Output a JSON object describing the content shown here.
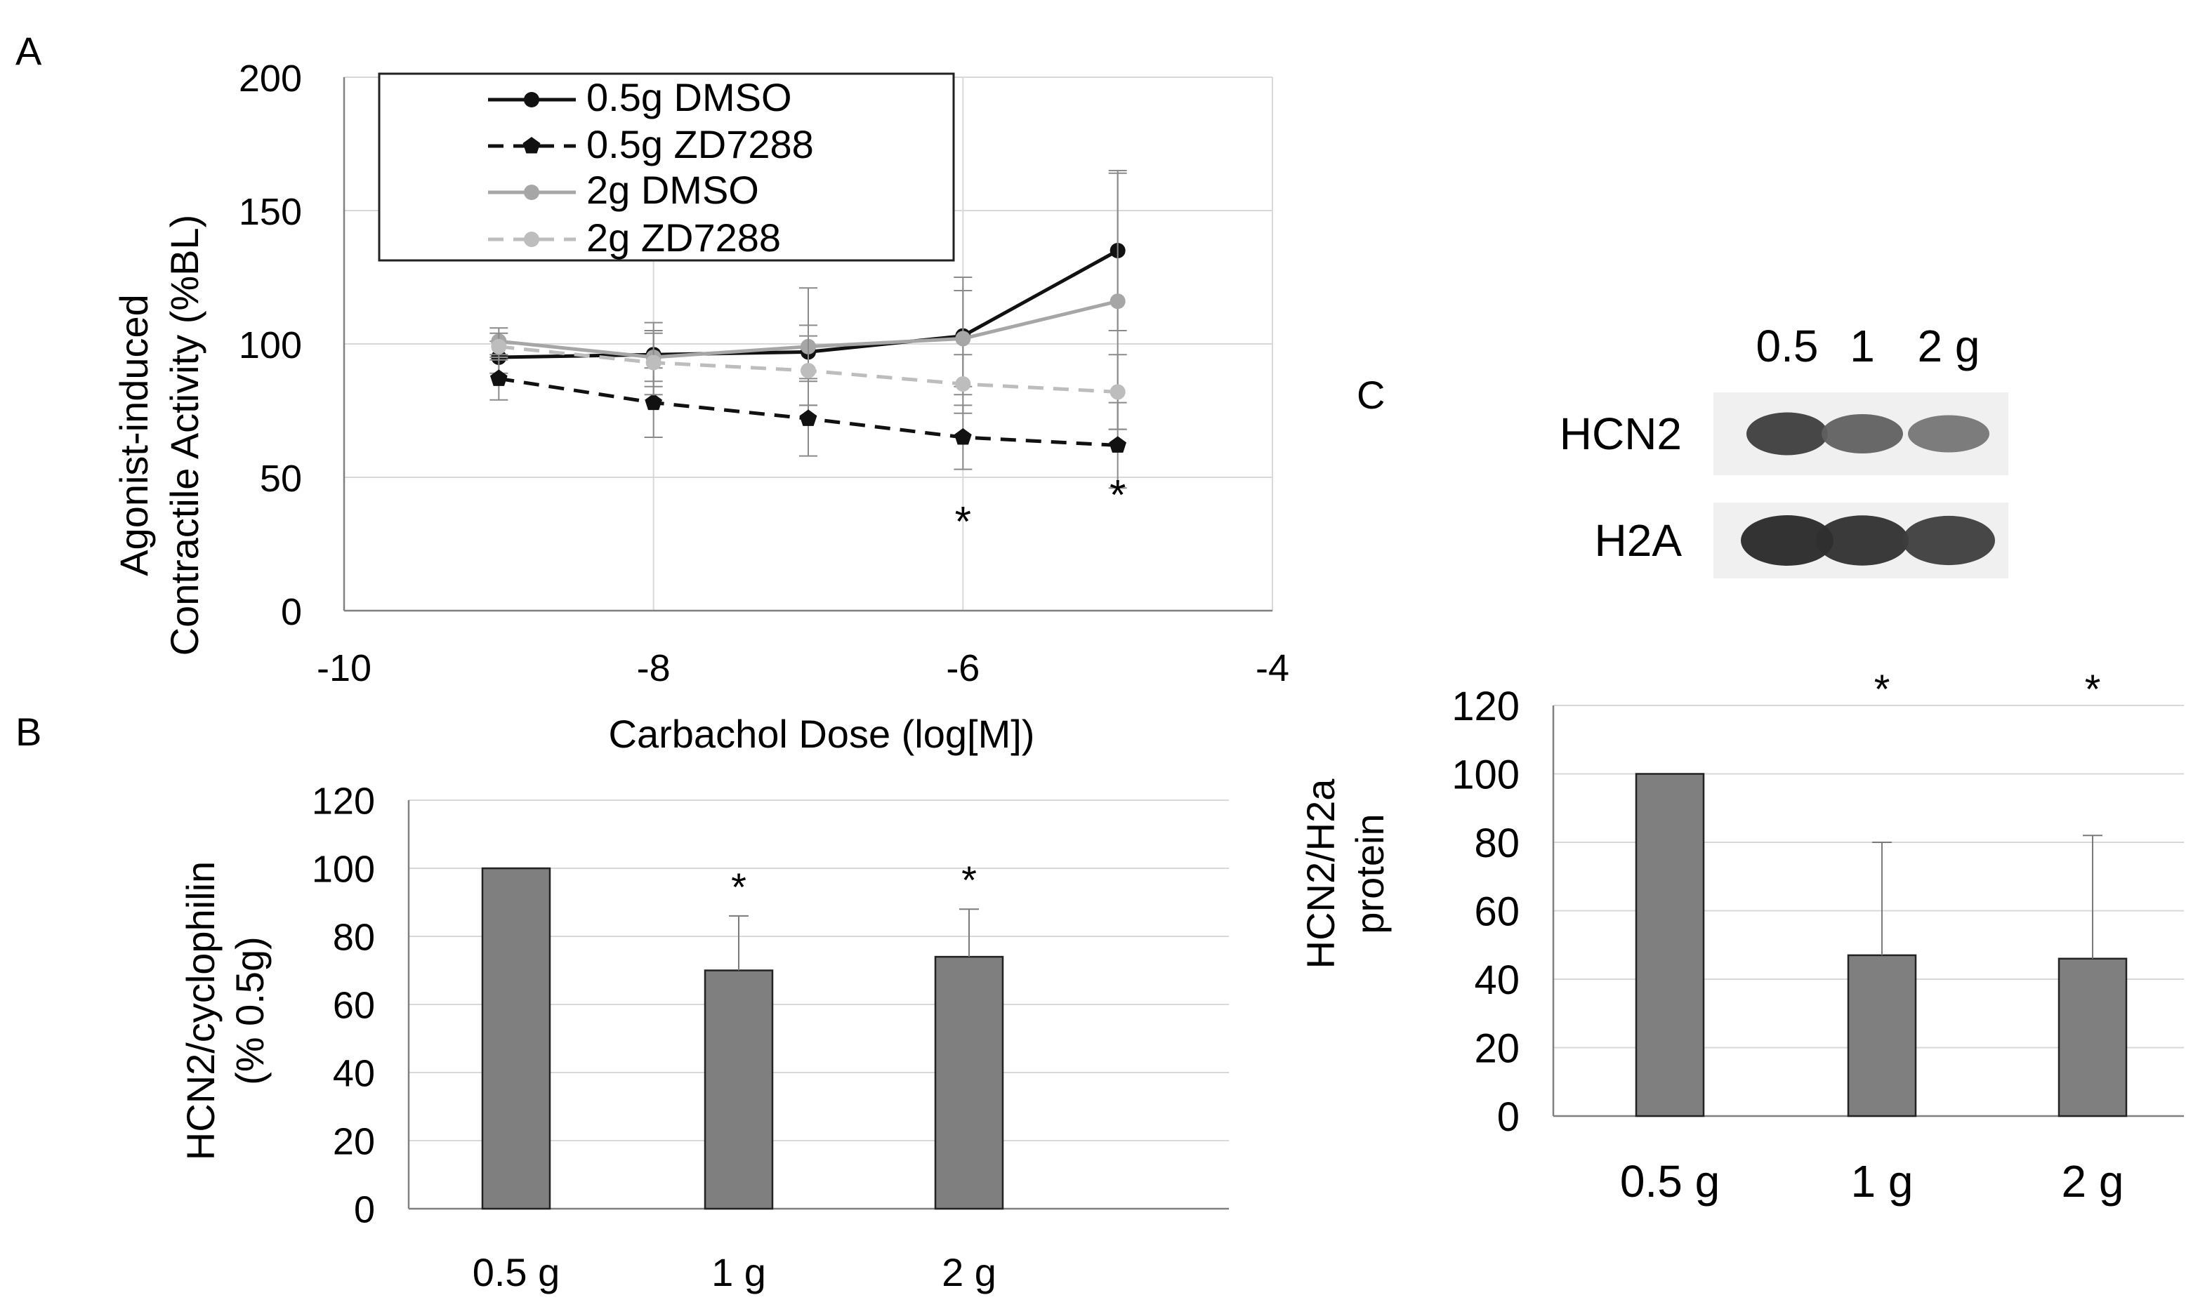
{
  "panels": {
    "a": "A",
    "b": "B",
    "c": "C"
  },
  "colors": {
    "black": "#111111",
    "gray_line": "#a6a6a6",
    "light_gray_line": "#bdbdbd",
    "bar_fill": "#7f7f7f",
    "grid": "#d9d9d9",
    "axis": "#808080"
  },
  "chart_data": [
    {
      "id": "A",
      "type": "line",
      "title": "",
      "xlabel": "Carbachol Dose (log[M])",
      "ylabel_lines": [
        "Agonist-induced",
        "Contractile Activity (%BL)"
      ],
      "xlim": [
        -10,
        -4
      ],
      "ylim": [
        0,
        200
      ],
      "xticks": [
        -10,
        -8,
        -6,
        -4
      ],
      "xtick_labels": [
        "-10",
        "-8",
        "-6",
        "-4"
      ],
      "yticks": [
        0,
        50,
        100,
        150,
        200
      ],
      "ytick_labels": [
        "0",
        "50",
        "100",
        "150",
        "200"
      ],
      "grid": true,
      "legend_position": "top-left",
      "x": [
        -9,
        -8,
        -7,
        -6,
        -5
      ],
      "series": [
        {
          "name": "0.5g DMSO",
          "style": "solid",
          "color": "#111111",
          "marker": "circle",
          "values": [
            95,
            96,
            97,
            103,
            135
          ],
          "errors": [
            6,
            12,
            10,
            22,
            30
          ]
        },
        {
          "name": "0.5g ZD7288",
          "style": "dashed",
          "color": "#111111",
          "marker": "pentagon",
          "values": [
            87,
            78,
            72,
            65,
            62
          ],
          "errors": [
            8,
            13,
            14,
            12,
            16
          ]
        },
        {
          "name": "2g DMSO",
          "style": "solid",
          "color": "#a6a6a6",
          "marker": "circle",
          "values": [
            101,
            95,
            99,
            102,
            116
          ],
          "errors": [
            5,
            9,
            22,
            18,
            48
          ]
        },
        {
          "name": "2g ZD7288",
          "style": "dashed",
          "color": "#bdbdbd",
          "marker": "circle",
          "values": [
            99,
            93,
            90,
            85,
            82
          ],
          "errors": [
            5,
            12,
            13,
            11,
            14
          ]
        }
      ],
      "annotations": [
        {
          "text": "*",
          "x": -6,
          "y": 28
        },
        {
          "text": "*",
          "x": -5,
          "y": 38
        }
      ]
    },
    {
      "id": "B",
      "type": "bar",
      "title": "",
      "xlabel": "",
      "ylabel_lines": [
        "HCN2/cyclophilin",
        "(% 0.5g)"
      ],
      "categories": [
        "0.5 g",
        "1 g",
        "2 g"
      ],
      "values": [
        100,
        70,
        74
      ],
      "errors": [
        0,
        16,
        14
      ],
      "significance": [
        "",
        "*",
        "*"
      ],
      "ylim": [
        0,
        120
      ],
      "yticks": [
        0,
        20,
        40,
        60,
        80,
        100,
        120
      ],
      "ytick_labels": [
        "0",
        "20",
        "40",
        "60",
        "80",
        "100",
        "120"
      ],
      "grid": true
    },
    {
      "id": "C",
      "type": "bar",
      "title": "",
      "xlabel": "",
      "ylabel_lines": [
        "HCN2/H2a",
        "protein"
      ],
      "categories": [
        "0.5 g",
        "1 g",
        "2 g"
      ],
      "values": [
        100,
        47,
        46
      ],
      "errors": [
        0,
        33,
        36
      ],
      "significance": [
        "",
        "*",
        "*"
      ],
      "ylim": [
        0,
        120
      ],
      "yticks": [
        0,
        20,
        40,
        60,
        80,
        100,
        120
      ],
      "ytick_labels": [
        "0",
        "20",
        "40",
        "60",
        "80",
        "100",
        "120"
      ],
      "grid": true
    }
  ],
  "blot": {
    "lanes": [
      "0.5",
      "1",
      "2 g"
    ],
    "rows": [
      {
        "label": "HCN2",
        "intensities": [
          0.85,
          0.6,
          0.45
        ]
      },
      {
        "label": "H2A",
        "intensities": [
          1.0,
          0.95,
          0.85
        ]
      }
    ]
  }
}
